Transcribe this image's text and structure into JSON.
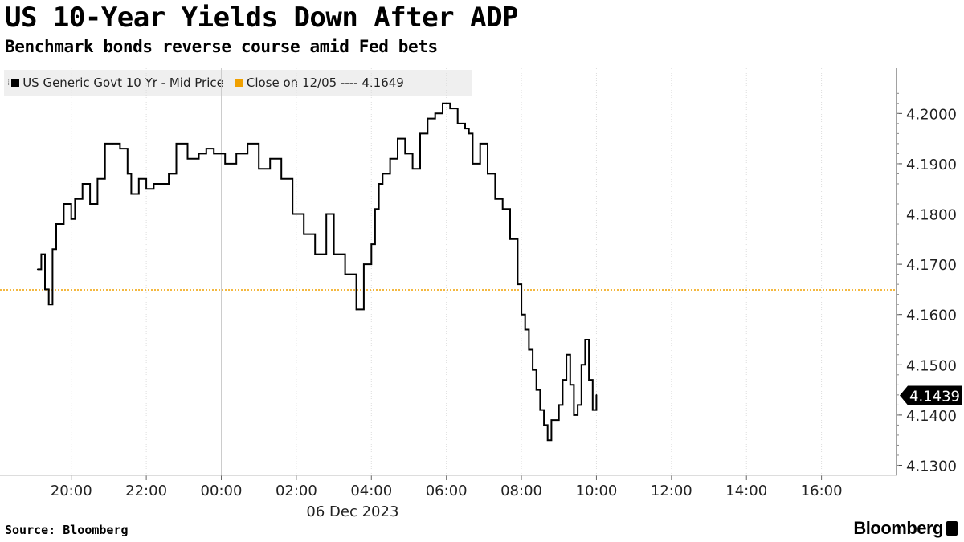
{
  "header": {
    "title": "US 10-Year Yields Down After ADP",
    "subtitle": "Benchmark bonds reverse course amid Fed bets"
  },
  "legend": {
    "series_label": "US Generic Govt 10 Yr - Mid Price",
    "close_label": "Close on 12/05 ---- 4.1649"
  },
  "footer": {
    "source": "Source: Bloomberg",
    "brand": "Bloomberg"
  },
  "colors": {
    "line": "#000000",
    "close_line": "#f0a000",
    "grid": "#dddddd",
    "last_badge_bg": "#000000",
    "last_badge_text": "#ffffff"
  },
  "chart_data": {
    "type": "line",
    "title": "US 10-Year Yields Down After ADP",
    "subtitle": "Benchmark bonds reverse course amid Fed bets",
    "date_label": "06 Dec 2023",
    "x_tick_labels": [
      "20:00",
      "22:00",
      "00:00",
      "02:00",
      "04:00",
      "06:00",
      "08:00",
      "10:00",
      "12:00",
      "14:00",
      "16:00"
    ],
    "x_ticks_hours": [
      20,
      22,
      24,
      26,
      28,
      30,
      32,
      34,
      36,
      38,
      40
    ],
    "x_range_hours": [
      18.1,
      42.0
    ],
    "y_tick_labels": [
      "4.1300",
      "4.1400",
      "4.1500",
      "4.1600",
      "4.1700",
      "4.1800",
      "4.1900",
      "4.2000"
    ],
    "y_ticks": [
      4.13,
      4.14,
      4.15,
      4.16,
      4.17,
      4.18,
      4.19,
      4.2
    ],
    "ylim": [
      4.128,
      4.209
    ],
    "grid": "vertical dotted",
    "last_value": 4.1439,
    "last_value_label": "4.1439",
    "reference_line": {
      "name": "Close on 12/05",
      "value": 4.1649
    },
    "series": [
      {
        "name": "US Generic Govt 10 Yr - Mid Price",
        "x": [
          19.1,
          19.2,
          19.3,
          19.4,
          19.5,
          19.6,
          19.8,
          20.0,
          20.1,
          20.3,
          20.5,
          20.7,
          20.9,
          21.1,
          21.3,
          21.5,
          21.6,
          21.8,
          22.0,
          22.2,
          22.4,
          22.6,
          22.8,
          23.1,
          23.4,
          23.6,
          23.8,
          24.1,
          24.4,
          24.7,
          25.0,
          25.3,
          25.6,
          25.9,
          26.2,
          26.5,
          26.8,
          27.0,
          27.3,
          27.6,
          27.8,
          28.0,
          28.1,
          28.2,
          28.3,
          28.5,
          28.7,
          28.9,
          29.1,
          29.3,
          29.5,
          29.7,
          29.9,
          30.1,
          30.3,
          30.5,
          30.6,
          30.7,
          30.9,
          31.1,
          31.3,
          31.5,
          31.7,
          31.9,
          32.0,
          32.1,
          32.2,
          32.3,
          32.4,
          32.5,
          32.6,
          32.7,
          32.8,
          33.0,
          33.1,
          33.2,
          33.3,
          33.4,
          33.5,
          33.6,
          33.7,
          33.8,
          33.9,
          34.0
        ],
        "values": [
          4.169,
          4.172,
          4.165,
          4.162,
          4.173,
          4.178,
          4.182,
          4.179,
          4.183,
          4.186,
          4.182,
          4.187,
          4.194,
          4.194,
          4.193,
          4.188,
          4.184,
          4.187,
          4.185,
          4.186,
          4.186,
          4.188,
          4.194,
          4.191,
          4.192,
          4.193,
          4.192,
          4.19,
          4.192,
          4.194,
          4.189,
          4.191,
          4.187,
          4.18,
          4.176,
          4.172,
          4.18,
          4.172,
          4.168,
          4.161,
          4.17,
          4.174,
          4.181,
          4.186,
          4.188,
          4.191,
          4.195,
          4.192,
          4.189,
          4.196,
          4.199,
          4.2,
          4.202,
          4.201,
          4.198,
          4.197,
          4.196,
          4.19,
          4.194,
          4.188,
          4.183,
          4.181,
          4.175,
          4.166,
          4.16,
          4.157,
          4.153,
          4.149,
          4.145,
          4.141,
          4.138,
          4.135,
          4.139,
          4.142,
          4.147,
          4.152,
          4.146,
          4.14,
          4.142,
          4.15,
          4.155,
          4.147,
          4.141,
          4.144
        ]
      }
    ]
  }
}
